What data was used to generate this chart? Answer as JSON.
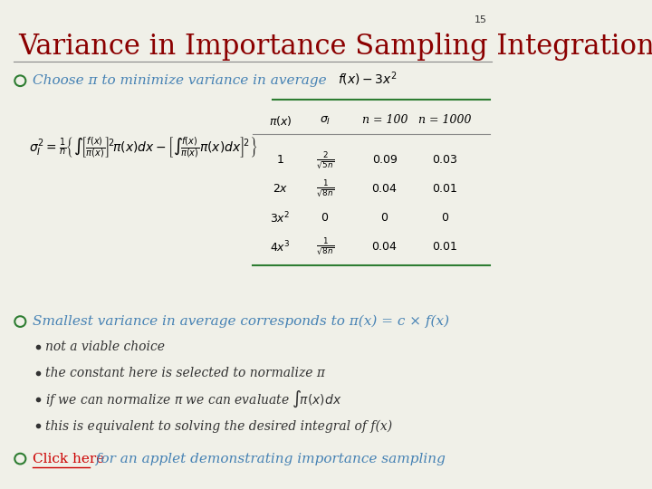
{
  "bg_color": "#f0f0e8",
  "title": "Variance in Importance Sampling Integration",
  "title_color": "#8b0000",
  "title_fontsize": 22,
  "slide_number": "15",
  "bullet_color": "#2e7d32",
  "bullet1_text": "Choose π to minimize variance in average",
  "formula_color": "#000000",
  "bullet2_text": "Smallest variance in average corresponds to π(x) = c × f(x)",
  "sub_bullets": [
    "not a viable choice",
    "the constant here is selected to normalize π",
    "if we can normalize π we can evaluate",
    "this is equivalent to solving the desired integral of f(x)"
  ],
  "link_text": "Click here",
  "link_rest": " for an applet demonstrating importance sampling",
  "link_color": "#cc0000",
  "text_color": "#4682b4",
  "table_line_color": "#2e7d32"
}
